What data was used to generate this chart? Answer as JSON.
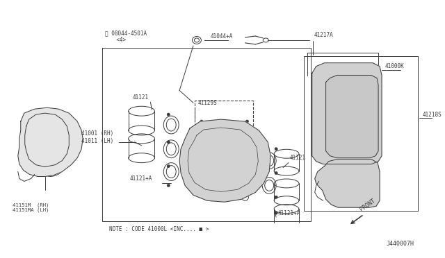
{
  "bg_color": "#ffffff",
  "line_color": "#3a3a3a",
  "text_color": "#3a3a3a",
  "diagram_id": "J440007H",
  "note_text": "NOTE : CODE 41000L <INC.... ■ >",
  "front_label": "FRONT",
  "labels": {
    "bolt_label": "Ⓑ 08044-4501A",
    "bolt_sub": "  <4>",
    "41044": "41044+A",
    "41217": "41217A",
    "41000K": "41000K",
    "41218S": "41218S",
    "41121_top": "41121",
    "41129S": "41129S",
    "41001": "41001 (RH)\n41011 (LH)",
    "41121_mid": "41121+A",
    "41121_bot": "41121",
    "41121_botA": "41121+A",
    "41151M": "41151M  (RH)\n41151MA (LH)"
  }
}
